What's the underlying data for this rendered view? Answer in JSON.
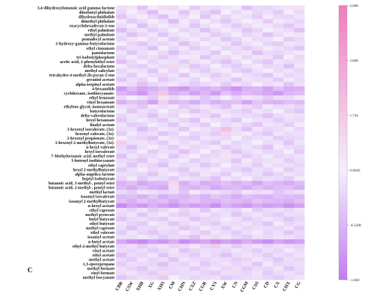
{
  "chart_data": {
    "type": "heatmap",
    "panel_label": "C",
    "rows": [
      "3,4-dihydroxybutanoic acid gamma-lactone",
      "diisobutyl phthalate",
      "dihydroactinidiolide",
      "dimethyl phthalate",
      "oxacyclohexadecan-2-one",
      "ethyl palmitate",
      "methyl palmitate",
      "pentadecyl acetate",
      "2-hydroxy-gamma-butyrolactone",
      "ethyl cinnamate",
      "pantolactone",
      "tri-isobutylphosphate",
      "acetic acid, 2-phenylethyl ester",
      "delta-hexalactone",
      "methyl salicylate",
      "tetrahydro-4-methyl-2h-pyran-2-one",
      "geraniol acetate",
      "alpha-terpinyl acetate",
      "4-hexanolide",
      "cyclohexane, isothiocyanato-",
      "ethyl benzoate",
      "vinyl hexanoate",
      "ethylene glycol, monoacetate",
      "butyrolactone",
      "delta-valerolactone",
      "hexyl hexanoate",
      "linalyl acetate",
      "3-hexenyl isovalerate, (3z)-",
      "hexenyl valerate, (3z)-",
      "3-hexenyl propionate, (3z)-",
      "3-hexenyl 2-methylbutyrate, (3z)-",
      "n-hexyl valerate",
      "hexyl isovalerate",
      "7-Methyloctanoic acid, methyl ester",
      "3-butenyl isothiocyanate",
      "ethyl caprylate",
      "hexyl 2-methylbutyrate",
      "alpha-angelica lactone",
      "heptyl isobutyrate",
      "butanoic acid, 3-methyl-, pentyl ester",
      "butanoic acid, 2-methyl-, pentyl ester",
      "methyl lactate",
      "isoamyl isovalerate",
      "isoamyl 2-methylbutyrate",
      "n-hexyl acetate",
      "ethyl caproate",
      "methyl pyruvate",
      "butyl butyrate",
      "ethyl butyrate",
      "methyl caproate",
      "ethyl valerate",
      "isoamyl acetate",
      "n-butyl acetate",
      "ethyl-2-methyl butyrate",
      "vinyl acetate",
      "ethyl acetate",
      "methyl acetate",
      "1,3-epoxypropane",
      "methyl formate",
      "vinyl formate",
      "methyl isocyanate"
    ],
    "columns": [
      "CBR",
      "CSW",
      "XHB",
      "XG",
      "XHS",
      "CM",
      "CHN",
      "CXZ",
      "CGR",
      "CYS",
      "XW",
      "CN",
      "CGM",
      "CSS",
      "CD",
      "CX",
      "CHX",
      "CG"
    ],
    "values": [
      [
        0.3,
        0.4,
        -0.2,
        0.5,
        1.1,
        0.2,
        0.6,
        -0.1,
        0.3,
        0.2,
        0.4,
        0.5,
        -0.3,
        0.2,
        0.1,
        0.3,
        0.4,
        1.0
      ],
      [
        0.1,
        0.6,
        0.2,
        -0.4,
        0.5,
        0.8,
        -0.2,
        0.4,
        0.1,
        -0.3,
        0.6,
        0.2,
        0.5,
        0.1,
        0.3,
        -0.1,
        0.6,
        0.2
      ],
      [
        -0.2,
        0.3,
        0.7,
        0.1,
        -0.3,
        0.4,
        0.2,
        0.6,
        -0.2,
        0.4,
        0.1,
        0.8,
        0.3,
        -0.1,
        0.5,
        0.2,
        0.1,
        0.4
      ],
      [
        0.5,
        -0.1,
        0.2,
        0.6,
        0.3,
        -0.4,
        0.5,
        0.1,
        0.7,
        0.2,
        -0.2,
        0.3,
        0.6,
        0.4,
        -0.1,
        0.5,
        0.3,
        0.1
      ],
      [
        0.2,
        0.5,
        -0.3,
        0.3,
        0.7,
        0.2,
        0.4,
        -0.2,
        0.3,
        0.6,
        0.3,
        -0.1,
        0.2,
        0.5,
        0.4,
        0.1,
        -0.2,
        0.3
      ],
      [
        -0.4,
        0.2,
        0.4,
        -0.1,
        0.2,
        0.6,
        0.1,
        0.3,
        -0.3,
        0.2,
        0.5,
        0.3,
        -0.2,
        0.1,
        0.6,
        0.4,
        0.2,
        -0.3
      ],
      [
        0.3,
        -0.3,
        0.1,
        0.4,
        -0.2,
        0.3,
        0.7,
        0.2,
        0.4,
        -0.1,
        0.2,
        0.6,
        0.1,
        0.3,
        -0.3,
        0.2,
        0.5,
        0.4
      ],
      [
        0.1,
        0.4,
        0.6,
        0.2,
        0.5,
        -0.1,
        0.3,
        0.5,
        0.1,
        0.4,
        -0.2,
        0.1,
        0.5,
        0.2,
        0.3,
        0.6,
        -0.1,
        0.2
      ],
      [
        0.6,
        0.1,
        -0.2,
        0.3,
        0.1,
        0.4,
        -0.3,
        0.2,
        0.6,
        0.3,
        0.4,
        -0.2,
        0.3,
        0.7,
        0.1,
        -0.1,
        0.4,
        0.3
      ],
      [
        -0.1,
        0.3,
        0.2,
        -0.3,
        0.6,
        0.1,
        0.4,
        -0.1,
        0.2,
        0.5,
        0.1,
        0.3,
        -0.1,
        0.2,
        0.5,
        0.3,
        0.1,
        -0.2
      ],
      [
        0.4,
        -0.2,
        0.3,
        0.5,
        0.2,
        -0.3,
        0.2,
        0.4,
        0.3,
        -0.2,
        0.6,
        0.2,
        0.4,
        -0.3,
        0.2,
        0.1,
        0.3,
        0.5
      ],
      [
        0.2,
        0.5,
        0.1,
        0.3,
        -0.1,
        0.2,
        0.5,
        0.8,
        -0.2,
        0.3,
        0.2,
        0.5,
        0.1,
        0.4,
        0.3,
        -0.2,
        0.6,
        0.1
      ],
      [
        -0.3,
        0.2,
        0.6,
        0.1,
        0.4,
        0.3,
        -0.1,
        0.3,
        0.5,
        0.1,
        -0.3,
        0.2,
        0.6,
        0.1,
        -0.2,
        0.4,
        0.2,
        0.3
      ],
      [
        0.5,
        0.1,
        -0.1,
        0.4,
        0.2,
        1.3,
        0.3,
        -0.2,
        0.1,
        0.6,
        0.2,
        -0.1,
        0.3,
        0.5,
        0.1,
        0.2,
        -0.3,
        0.4
      ],
      [
        0.1,
        0.4,
        0.3,
        -0.2,
        0.5,
        0.1,
        0.6,
        0.2,
        -0.1,
        0.3,
        0.5,
        0.1,
        -0.2,
        0.3,
        0.6,
        0.2,
        0.4,
        0.1
      ],
      [
        0.3,
        -0.1,
        0.5,
        0.2,
        0.1,
        0.4,
        -0.2,
        0.5,
        0.3,
        -0.1,
        0.2,
        0.6,
        0.3,
        0.1,
        -0.2,
        0.5,
        0.1,
        0.3
      ],
      [
        -0.2,
        0.3,
        0.1,
        0.6,
        -0.1,
        0.2,
        0.4,
        0.1,
        0.6,
        0.2,
        0.3,
        -0.2,
        0.4,
        0.2,
        0.3,
        -0.1,
        0.5,
        0.2
      ],
      [
        0.4,
        0.2,
        -0.3,
        0.1,
        0.3,
        0.5,
        0.2,
        -0.1,
        0.2,
        0.4,
        -0.1,
        0.3,
        0.1,
        0.6,
        0.2,
        0.4,
        -0.2,
        0.3
      ],
      [
        -1.0,
        -0.4,
        -0.8,
        -0.6,
        -0.3,
        -0.9,
        -1.1,
        -0.5,
        -0.7,
        -0.4,
        -0.8,
        -1.2,
        -0.6,
        -0.5,
        -0.9,
        -0.3,
        -0.7,
        -0.6
      ],
      [
        -0.5,
        -0.8,
        -1.1,
        -0.3,
        1.8,
        -0.6,
        -0.4,
        -0.9,
        -0.5,
        -1.0,
        -0.3,
        -0.7,
        -0.4,
        -0.6,
        -0.8,
        -1.1,
        -0.5,
        -0.4
      ],
      [
        0.2,
        0.6,
        0.3,
        -0.1,
        0.4,
        0.2,
        0.5,
        0.3,
        -0.2,
        0.2,
        0.6,
        0.1,
        0.4,
        0.3,
        -0.1,
        0.3,
        0.2,
        0.5
      ],
      [
        -0.6,
        -0.2,
        -0.4,
        -0.9,
        1.5,
        -0.5,
        -0.3,
        -0.7,
        -0.2,
        -0.6,
        -0.4,
        -0.3,
        -0.8,
        -0.2,
        -0.5,
        -0.6,
        -0.3,
        -0.4
      ],
      [
        0.3,
        0.1,
        -0.2,
        0.4,
        0.2,
        0.5,
        -0.1,
        0.2,
        0.4,
        0.1,
        -0.3,
        0.4,
        0.2,
        -0.1,
        0.5,
        0.2,
        0.3,
        0.1
      ],
      [
        0.5,
        -0.2,
        0.3,
        0.1,
        0.6,
        0.2,
        0.3,
        -0.2,
        0.1,
        0.4,
        0.3,
        0.1,
        -0.1,
        0.4,
        0.2,
        0.6,
        0.1,
        -0.2
      ],
      [
        0.1,
        0.4,
        0.2,
        -0.3,
        0.3,
        0.1,
        0.6,
        0.4,
        0.2,
        -0.2,
        0.5,
        0.3,
        0.2,
        0.1,
        -0.3,
        0.2,
        0.4,
        0.3
      ],
      [
        -0.2,
        0.3,
        0.5,
        0.2,
        -0.1,
        0.4,
        0.1,
        -0.3,
        0.5,
        0.3,
        0.1,
        -0.2,
        0.6,
        0.3,
        0.2,
        -0.1,
        0.3,
        0.2
      ],
      [
        0.4,
        -0.1,
        0.1,
        0.5,
        0.3,
        -0.2,
        0.4,
        0.2,
        -0.1,
        0.6,
        0.2,
        0.4,
        0.1,
        -0.2,
        0.4,
        0.3,
        -0.1,
        0.5
      ],
      [
        0.2,
        0.3,
        -0.4,
        0.1,
        0.4,
        0.3,
        -0.2,
        0.5,
        0.3,
        0.1,
        2.0,
        0.2,
        -0.3,
        0.4,
        0.1,
        0.2,
        0.5,
        0.1
      ],
      [
        -0.1,
        0.5,
        0.2,
        0.3,
        -0.2,
        0.1,
        0.6,
        0.1,
        0.2,
        -0.1,
        1.4,
        0.3,
        0.5,
        0.1,
        -0.2,
        0.4,
        0.2,
        0.3
      ],
      [
        0.6,
        0.2,
        0.1,
        -0.2,
        0.5,
        0.3,
        0.1,
        -0.1,
        0.4,
        0.3,
        0.2,
        0.6,
        0.1,
        0.3,
        0.4,
        -0.1,
        0.1,
        0.2
      ],
      [
        1.6,
        0.3,
        0.4,
        0.2,
        -0.1,
        0.5,
        0.2,
        0.4,
        0.1,
        -0.2,
        0.5,
        0.1,
        0.3,
        0.6,
        0.2,
        0.3,
        -0.2,
        0.4
      ],
      [
        0.1,
        -0.3,
        0.3,
        0.6,
        0.2,
        -0.1,
        0.4,
        0.1,
        0.3,
        0.5,
        -0.1,
        0.2,
        0.4,
        0.1,
        -0.3,
        0.5,
        0.2,
        0.1
      ],
      [
        0.3,
        0.1,
        0.5,
        -0.1,
        0.3,
        0.2,
        -0.3,
        0.2,
        0.6,
        0.1,
        0.3,
        -0.2,
        0.2,
        0.4,
        0.1,
        0.2,
        0.6,
        -0.1
      ],
      [
        -0.3,
        0.4,
        0.1,
        0.2,
        0.5,
        -0.2,
        0.3,
        0.6,
        0.1,
        0.2,
        1.0,
        0.3,
        -0.1,
        0.2,
        0.5,
        0.1,
        0.2,
        0.4
      ],
      [
        0.2,
        0.1,
        -0.2,
        0.4,
        0.1,
        0.3,
        0.5,
        -0.1,
        0.2,
        0.4,
        0.3,
        -0.2,
        0.5,
        0.1,
        0.3,
        0.4,
        -0.1,
        0.2
      ],
      [
        0.4,
        -0.2,
        0.3,
        0.1,
        -0.3,
        0.4,
        0.2,
        0.3,
        -0.2,
        0.1,
        0.6,
        0.2,
        0.3,
        -0.1,
        0.4,
        0.2,
        0.3,
        0.1
      ],
      [
        -0.1,
        0.3,
        0.6,
        0.2,
        0.4,
        0.1,
        -0.2,
        0.4,
        0.3,
        0.5,
        0.2,
        0.1,
        -0.2,
        0.3,
        0.1,
        0.5,
        -0.1,
        0.3
      ],
      [
        0.3,
        0.2,
        0.1,
        -0.2,
        0.3,
        0.5,
        0.1,
        -0.1,
        0.4,
        0.2,
        -0.1,
        0.5,
        0.2,
        0.3,
        -0.2,
        0.1,
        0.4,
        0.2
      ],
      [
        0.1,
        0.5,
        -0.1,
        0.3,
        0.2,
        -0.1,
        0.4,
        0.2,
        0.1,
        -0.3,
        0.4,
        0.2,
        0.6,
        0.1,
        0.3,
        0.2,
        -0.1,
        0.5
      ],
      [
        -0.6,
        -0.3,
        -0.8,
        -0.5,
        -0.4,
        1.3,
        -0.6,
        -0.2,
        -0.7,
        -0.5,
        -0.3,
        -0.6,
        -0.4,
        -0.8,
        -0.3,
        -0.5,
        -0.7,
        -0.4
      ],
      [
        -0.4,
        -0.7,
        -0.3,
        -0.6,
        -0.8,
        1.1,
        -0.4,
        -0.6,
        -0.3,
        -0.8,
        -0.5,
        -0.4,
        -0.7,
        -0.3,
        -0.6,
        -0.4,
        -0.3,
        -0.6
      ],
      [
        0.2,
        -0.1,
        0.4,
        0.3,
        0.1,
        0.2,
        -0.2,
        0.5,
        0.2,
        0.3,
        0.1,
        -0.1,
        0.4,
        0.2,
        0.3,
        -0.2,
        0.1,
        0.3
      ],
      [
        -0.5,
        -0.3,
        -0.6,
        -0.2,
        -0.7,
        -0.4,
        -0.5,
        -0.3,
        -0.6,
        -0.2,
        -0.4,
        -0.7,
        -0.3,
        -0.5,
        -0.6,
        -0.3,
        -0.4,
        -0.5
      ],
      [
        -0.3,
        -0.6,
        -0.2,
        -0.5,
        -0.3,
        -0.7,
        -0.4,
        -0.2,
        -0.5,
        -0.6,
        -0.3,
        -0.4,
        -0.6,
        -0.2,
        -0.4,
        -0.5,
        -0.6,
        -0.3
      ],
      [
        -1.4,
        -0.8,
        -1.1,
        -0.6,
        -0.9,
        -1.2,
        -0.7,
        -1.0,
        -0.8,
        -1.3,
        -0.6,
        -0.9,
        -1.1,
        -0.7,
        -1.0,
        -0.8,
        -1.2,
        -0.9
      ],
      [
        0.3,
        0.1,
        0.4,
        -0.1,
        0.2,
        0.5,
        0.1,
        0.3,
        -0.2,
        0.4,
        0.2,
        0.1,
        0.5,
        -0.1,
        0.2,
        0.3,
        0.1,
        0.4
      ],
      [
        0.1,
        0.4,
        -0.2,
        0.3,
        0.5,
        0.1,
        -0.1,
        0.2,
        0.4,
        0.1,
        0.3,
        -0.2,
        0.2,
        0.4,
        0.1,
        -0.1,
        0.3,
        0.2
      ],
      [
        -0.2,
        0.2,
        0.3,
        0.1,
        -0.1,
        0.4,
        0.3,
        -0.2,
        0.1,
        0.2,
        0.5,
        0.3,
        -0.1,
        0.2,
        0.4,
        0.2,
        -0.2,
        0.1
      ],
      [
        0.4,
        0.1,
        -0.1,
        0.5,
        0.3,
        -0.2,
        0.2,
        0.4,
        0.1,
        -0.1,
        0.3,
        0.2,
        0.4,
        0.1,
        -0.2,
        0.5,
        0.1,
        0.3
      ],
      [
        0.2,
        -0.3,
        0.2,
        0.1,
        0.4,
        0.3,
        -0.2,
        0.1,
        0.5,
        0.3,
        -0.1,
        0.4,
        0.1,
        0.3,
        0.2,
        0.1,
        0.4,
        -0.1
      ],
      [
        -0.1,
        0.4,
        0.1,
        -0.2,
        0.2,
        0.1,
        0.5,
        0.2,
        -0.1,
        0.4,
        0.2,
        -0.1,
        0.3,
        0.5,
        0.1,
        0.3,
        -0.2,
        0.2
      ],
      [
        0.3,
        0.2,
        0.5,
        0.3,
        -0.1,
        0.2,
        0.1,
        -0.3,
        0.3,
        0.2,
        0.4,
        0.1,
        -0.1,
        0.3,
        0.2,
        0.4,
        0.3,
        0.1
      ],
      [
        -0.8,
        -1.2,
        -1.4,
        -0.9,
        -1.1,
        -0.7,
        -1.3,
        -1.0,
        -0.8,
        -1.2,
        -0.9,
        -1.1,
        -0.7,
        -1.0,
        -1.3,
        -0.8,
        -1.1,
        -0.9
      ],
      [
        0.1,
        0.3,
        -0.1,
        0.2,
        0.4,
        0.1,
        0.2,
        0.5,
        0.1,
        1.6,
        0.3,
        -0.1,
        0.2,
        0.4,
        0.1,
        0.3,
        0.2,
        0.1
      ],
      [
        0.2,
        0.1,
        0.3,
        -0.1,
        0.2,
        0.4,
        -0.2,
        0.1,
        0.3,
        0.2,
        0.1,
        0.4,
        0.2,
        -0.1,
        0.3,
        0.1,
        0.5,
        0.2
      ],
      [
        -0.3,
        0.2,
        0.1,
        0.4,
        -0.2,
        0.3,
        0.2,
        -0.1,
        0.4,
        0.1,
        -0.3,
        0.2,
        0.4,
        0.2,
        -0.1,
        0.3,
        0.1,
        0.4
      ],
      [
        0.2,
        -0.1,
        0.4,
        0.1,
        0.3,
        -0.2,
        0.4,
        0.2,
        0.1,
        0.3,
        0.2,
        -0.1,
        0.1,
        0.4,
        0.2,
        -0.2,
        0.3,
        0.1
      ],
      [
        -0.1,
        0.3,
        0.2,
        0.1,
        -0.3,
        0.2,
        0.1,
        0.4,
        -0.1,
        0.2,
        0.4,
        0.1,
        0.3,
        -0.2,
        0.5,
        0.1,
        0.2,
        0.3
      ],
      [
        0.3,
        0.1,
        -0.2,
        0.3,
        0.1,
        0.2,
        0.3,
        -0.1,
        0.2,
        0.4,
        0.1,
        0.3,
        -0.1,
        0.2,
        0.1,
        0.4,
        -0.2,
        0.2
      ],
      [
        0.2,
        0.4,
        0.1,
        -0.1,
        1.2,
        0.1,
        0.2,
        0.3,
        0.1,
        -0.1,
        0.3,
        0.2,
        0.1,
        0.4,
        -0.1,
        0.2,
        0.3,
        0.1
      ],
      [
        -0.2,
        0.1,
        0.3,
        0.2,
        -0.1,
        0.6,
        0.3,
        0.1,
        0.2,
        0.3,
        -0.1,
        0.1,
        0.2,
        0.3,
        0.1,
        -0.1,
        0.2,
        0.4
      ]
    ],
    "vmin": -1.66,
    "vmax": 4.0,
    "colorbar_ticks": [
      "4.000",
      "2.868",
      "1.736",
      "0.6040",
      "-0.5280",
      "-1.660"
    ],
    "colorbar_tick_values": [
      4.0,
      2.868,
      1.736,
      0.604,
      -0.528,
      -1.66
    ],
    "colors": {
      "low": "#c27cf0",
      "mid": "#f4eefb",
      "high": "#f07cbe"
    }
  }
}
